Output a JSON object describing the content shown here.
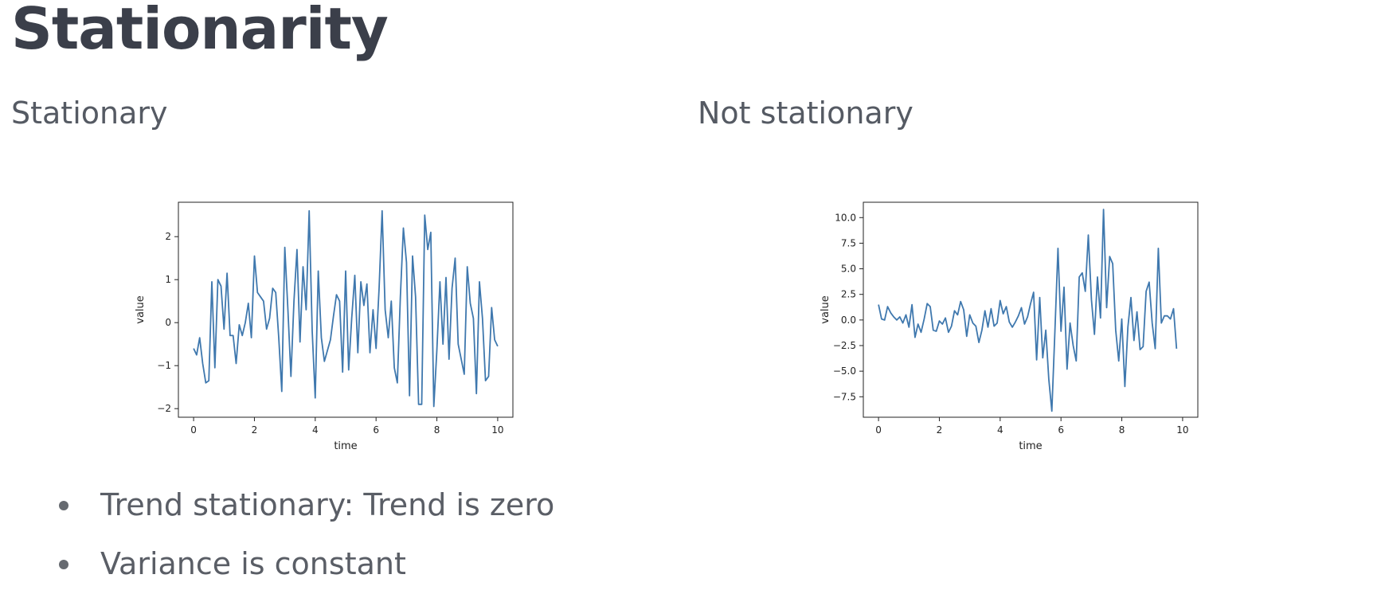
{
  "slide": {
    "title": "Stationarity",
    "left_label": "Stationary",
    "right_label": "Not stationary",
    "bullets": [
      "Trend stationary: Trend is zero",
      "Variance is constant"
    ]
  },
  "chart_data": [
    {
      "type": "line",
      "xlabel": "time",
      "ylabel": "value",
      "xlim": [
        -0.5,
        10.5
      ],
      "ylim": [
        -2.2,
        2.8
      ],
      "xticks": [
        0,
        2,
        4,
        6,
        8,
        10
      ],
      "yticks": [
        -2,
        -1,
        0,
        1,
        2
      ],
      "xtick_labels": [
        "0",
        "2",
        "4",
        "6",
        "8",
        "10"
      ],
      "ytick_labels": [
        "−2",
        "−1",
        "0",
        "1",
        "2"
      ],
      "color": "#3f78ae",
      "series": [
        {
          "x": [
            0.0,
            0.1,
            0.2,
            0.3,
            0.4,
            0.5,
            0.6,
            0.7,
            0.8,
            0.9,
            1.0,
            1.1,
            1.2,
            1.3,
            1.4,
            1.5,
            1.6,
            1.7,
            1.8,
            1.9,
            2.0,
            2.1,
            2.2,
            2.3,
            2.4,
            2.5,
            2.6,
            2.7,
            2.8,
            2.9,
            3.0,
            3.1,
            3.2,
            3.3,
            3.4,
            3.5,
            3.6,
            3.7,
            3.8,
            3.9,
            4.0,
            4.1,
            4.2,
            4.3,
            4.4,
            4.5,
            4.6,
            4.7,
            4.8,
            4.9,
            5.0,
            5.1,
            5.2,
            5.3,
            5.4,
            5.5,
            5.6,
            5.7,
            5.8,
            5.9,
            6.0,
            6.1,
            6.2,
            6.3,
            6.4,
            6.5,
            6.6,
            6.7,
            6.8,
            6.9,
            7.0,
            7.1,
            7.2,
            7.3,
            7.4,
            7.5,
            7.6,
            7.7,
            7.8,
            7.9,
            8.0,
            8.1,
            8.2,
            8.3,
            8.4,
            8.5,
            8.6,
            8.7,
            8.8,
            8.9,
            9.0,
            9.1,
            9.2,
            9.3,
            9.4,
            9.5,
            9.6,
            9.7,
            9.8,
            9.9,
            10.0
          ],
          "y": [
            -0.6,
            -0.75,
            -0.35,
            -0.95,
            -1.4,
            -1.35,
            0.95,
            -1.05,
            1.0,
            0.85,
            -0.15,
            1.15,
            -0.3,
            -0.3,
            -0.95,
            -0.05,
            -0.3,
            0.0,
            0.45,
            -0.35,
            1.55,
            0.7,
            0.6,
            0.5,
            -0.15,
            0.1,
            0.8,
            0.7,
            -0.35,
            -1.6,
            1.75,
            0.3,
            -1.25,
            0.5,
            1.7,
            -0.45,
            1.3,
            0.3,
            2.6,
            -0.2,
            -1.75,
            1.2,
            -0.35,
            -0.9,
            -0.65,
            -0.4,
            0.15,
            0.65,
            0.5,
            -1.15,
            1.2,
            -1.1,
            0.1,
            1.1,
            -0.7,
            0.95,
            0.4,
            0.9,
            -0.7,
            0.3,
            -0.6,
            0.8,
            2.6,
            0.3,
            -0.35,
            0.5,
            -1.05,
            -1.4,
            0.6,
            2.2,
            1.4,
            -1.7,
            1.55,
            0.6,
            -1.9,
            -1.9,
            2.5,
            1.7,
            2.1,
            -1.95,
            -0.65,
            0.95,
            -0.5,
            1.05,
            -0.85,
            0.8,
            1.5,
            -0.5,
            -0.85,
            -1.2,
            1.3,
            0.45,
            0.1,
            -1.65,
            0.95,
            0.1,
            -1.35,
            -1.25,
            0.35,
            -0.4,
            -0.55
          ]
        }
      ]
    },
    {
      "type": "line",
      "xlabel": "time",
      "ylabel": "value",
      "xlim": [
        -0.5,
        10.5
      ],
      "ylim": [
        -9.5,
        11.5
      ],
      "xticks": [
        0,
        2,
        4,
        6,
        8,
        10
      ],
      "yticks": [
        -7.5,
        -5.0,
        -2.5,
        0.0,
        2.5,
        5.0,
        7.5,
        10.0
      ],
      "xtick_labels": [
        "0",
        "2",
        "4",
        "6",
        "8",
        "10"
      ],
      "ytick_labels": [
        "−7.5",
        "−5.0",
        "−2.5",
        "0.0",
        "2.5",
        "5.0",
        "7.5",
        "10.0"
      ],
      "color": "#3f78ae",
      "series": [
        {
          "x": [
            0.0,
            0.1,
            0.2,
            0.3,
            0.4,
            0.5,
            0.6,
            0.7,
            0.8,
            0.9,
            1.0,
            1.1,
            1.2,
            1.3,
            1.4,
            1.5,
            1.6,
            1.7,
            1.8,
            1.9,
            2.0,
            2.1,
            2.2,
            2.3,
            2.4,
            2.5,
            2.6,
            2.7,
            2.8,
            2.9,
            3.0,
            3.1,
            3.2,
            3.3,
            3.4,
            3.5,
            3.6,
            3.7,
            3.8,
            3.9,
            4.0,
            4.1,
            4.2,
            4.3,
            4.4,
            4.5,
            4.6,
            4.7,
            4.8,
            4.9,
            5.0,
            5.1,
            5.2,
            5.3,
            5.4,
            5.5,
            5.6,
            5.7,
            5.8,
            5.9,
            6.0,
            6.1,
            6.2,
            6.3,
            6.4,
            6.5,
            6.6,
            6.7,
            6.8,
            6.9,
            7.0,
            7.1,
            7.2,
            7.3,
            7.4,
            7.5,
            7.6,
            7.7,
            7.8,
            7.9,
            8.0,
            8.1,
            8.2,
            8.3,
            8.4,
            8.5,
            8.6,
            8.7,
            8.8,
            8.9,
            9.0,
            9.1,
            9.2,
            9.3,
            9.4,
            9.5,
            9.6,
            9.7,
            9.8,
            9.9,
            10.0
          ],
          "y": [
            1.5,
            0.1,
            0.0,
            1.3,
            0.7,
            0.3,
            0.0,
            0.3,
            -0.3,
            0.5,
            -0.7,
            1.5,
            -1.7,
            -0.4,
            -1.2,
            0.1,
            1.6,
            1.3,
            -1.0,
            -1.1,
            -0.1,
            -0.4,
            0.2,
            -1.2,
            -0.6,
            0.9,
            0.5,
            1.8,
            1.0,
            -1.6,
            0.5,
            -0.3,
            -0.6,
            -2.2,
            -1.0,
            0.9,
            -0.7,
            1.1,
            -0.6,
            -0.3,
            1.9,
            0.6,
            1.3,
            -0.2,
            -0.7,
            -0.2,
            0.4,
            1.2,
            -0.4,
            0.3,
            1.6,
            2.7,
            -3.9,
            2.2,
            -3.7,
            -1.0,
            -5.8,
            -8.9,
            -1.2,
            7.0,
            -1.1,
            3.2,
            -4.8,
            -0.3,
            -2.5,
            -4.0,
            4.2,
            4.6,
            2.8,
            8.3,
            2.0,
            -1.4,
            4.2,
            0.2,
            10.8,
            1.2,
            6.2,
            5.5,
            -1.0,
            -4.0,
            0.1,
            -6.5,
            -0.7,
            2.2,
            -2.0,
            0.8,
            -2.9,
            -2.6,
            2.8,
            3.7,
            -0.3,
            -2.8,
            7.0,
            -0.3,
            0.4,
            0.4,
            0.1,
            1.1,
            -2.8,
            null,
            null
          ]
        }
      ]
    }
  ]
}
